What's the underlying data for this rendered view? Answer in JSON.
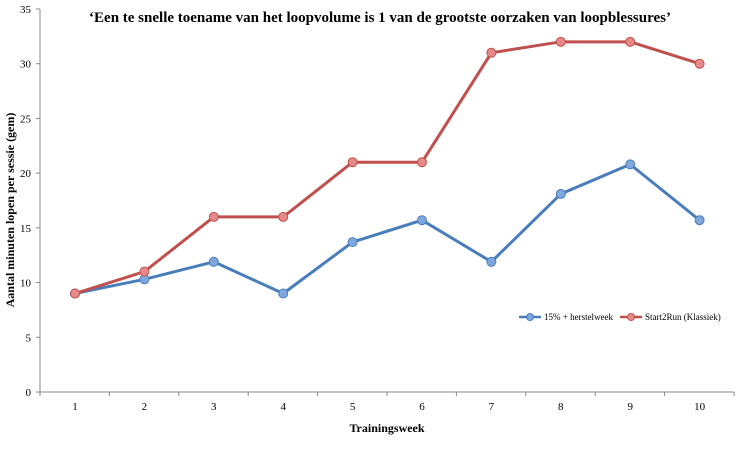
{
  "chart_data": {
    "type": "line",
    "title": "‘Een te snelle toename van het loopvolume is 1 van de grootste oorzaken van loopblessures’",
    "xlabel": "Trainingsweek",
    "ylabel": "Aantal minuten lopen per sessie (gem)",
    "x": [
      1,
      2,
      3,
      4,
      5,
      6,
      7,
      8,
      9,
      10
    ],
    "x_tick_labels": [
      "1",
      "2",
      "3",
      "4",
      "5",
      "6",
      "7",
      "8",
      "9",
      "10"
    ],
    "ylim": [
      0,
      35
    ],
    "y_ticks": [
      0,
      5,
      10,
      15,
      20,
      25,
      30,
      35
    ],
    "y_tick_labels": [
      "0",
      "5",
      "10",
      "15",
      "20",
      "25",
      "30",
      "35"
    ],
    "grid": false,
    "legend_position": "right",
    "series": [
      {
        "name": "15% + herstelweek",
        "color": "#4A7EBB",
        "marker_color": "#7FA7DD",
        "values": [
          9,
          10.3,
          11.9,
          9,
          13.7,
          15.7,
          11.9,
          18.1,
          20.8,
          15.7
        ]
      },
      {
        "name": "Start2Run (Klassiek)",
        "color": "#C0504D",
        "marker_color": "#E58A88",
        "values": [
          9,
          11,
          16,
          16,
          21,
          21,
          31,
          32,
          32,
          30
        ]
      }
    ]
  }
}
